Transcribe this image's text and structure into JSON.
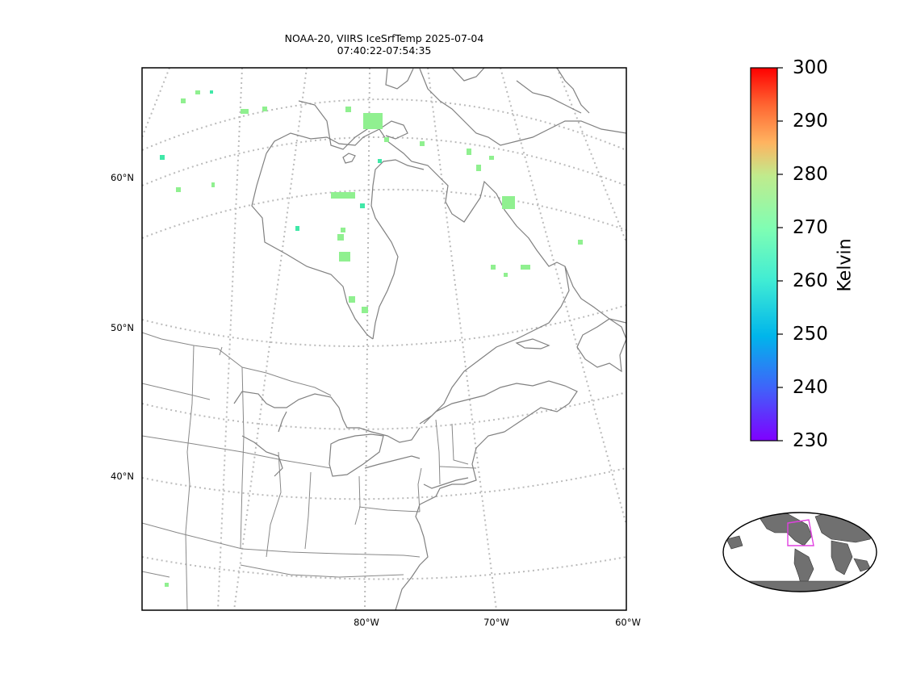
{
  "title": {
    "line1": "NOAA-20, VIIRS IceSrfTemp 2025-07-04",
    "line2": "07:40:22-07:54:35"
  },
  "lat_labels": [
    "60°N",
    "50°N",
    "40°N"
  ],
  "lon_labels": [
    "80°W",
    "70°W",
    "60°W"
  ],
  "colorbar": {
    "label": "Kelvin",
    "min": 230,
    "max": 300,
    "ticks": [
      "300",
      "290",
      "280",
      "270",
      "260",
      "250",
      "240",
      "230"
    ],
    "colormap": "rainbow"
  },
  "map": {
    "projection": "conic",
    "gridlines": "dotted",
    "coastline_color": "#808080",
    "data_color_main": "#90f090",
    "data_color_alt": "#40e8a8"
  },
  "inset": {
    "type": "globe-locator",
    "land_color": "#707070",
    "highlight_color": "#e040e0"
  }
}
